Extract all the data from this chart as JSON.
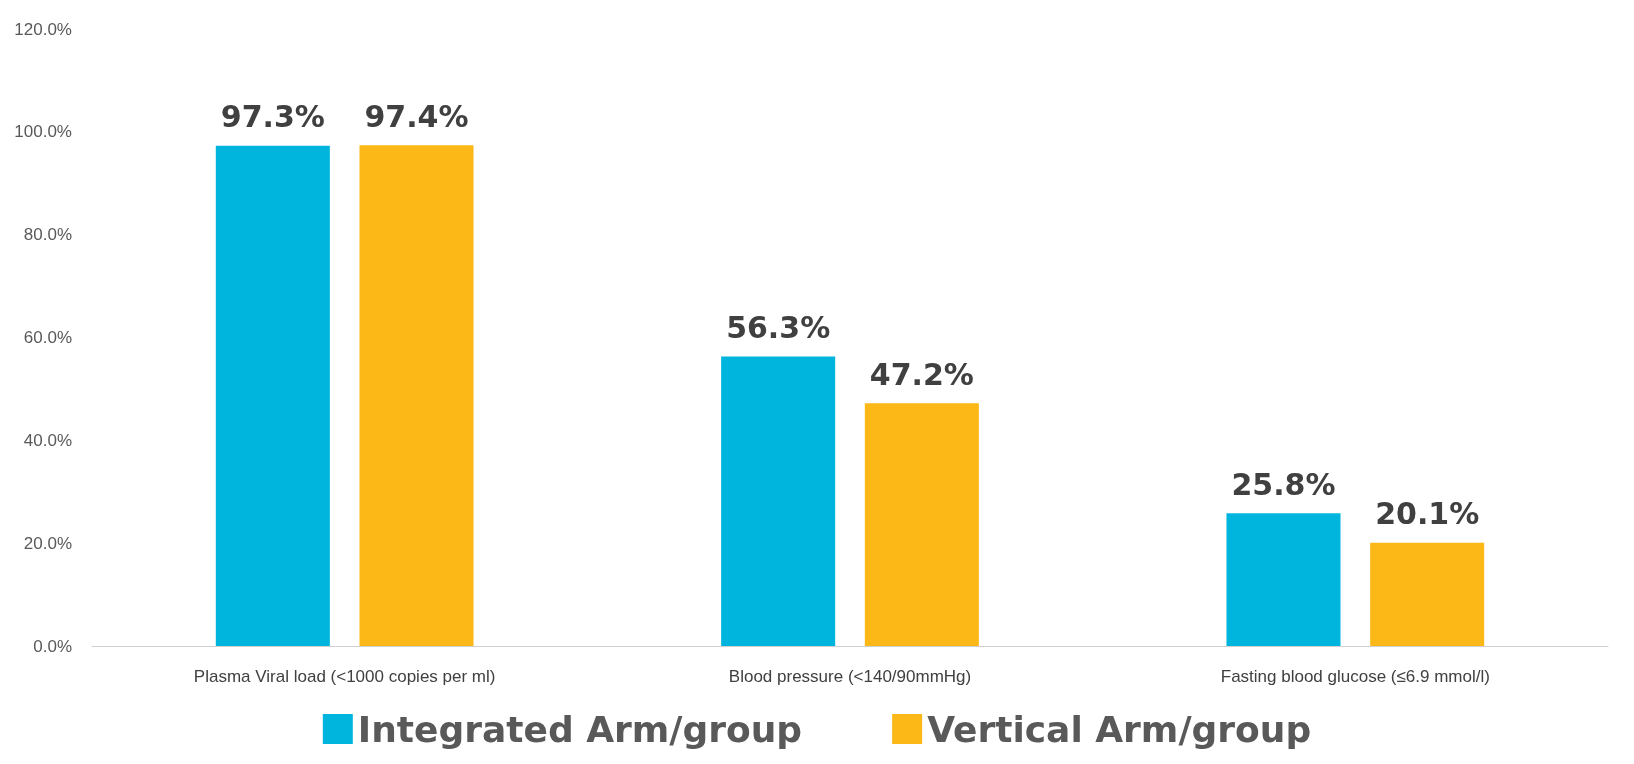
{
  "chart_data": {
    "type": "bar",
    "categories": [
      "Plasma Viral load (<1000 copies per ml)",
      "Blood pressure (<140/90mmHg)",
      "Fasting blood glucose (≤6.9 mmol/l)"
    ],
    "series": [
      {
        "name": "Integrated Arm/group",
        "color": "#00b5dd",
        "values": [
          97.3,
          56.3,
          25.8
        ],
        "value_labels": [
          "97.3%",
          "56.3%",
          "25.8%"
        ]
      },
      {
        "name": "Vertical Arm/group",
        "color": "#fbb817",
        "values": [
          97.4,
          47.2,
          20.1
        ],
        "value_labels": [
          "97.4%",
          "47.2%",
          "20.1%"
        ]
      }
    ],
    "ylim": [
      0,
      120
    ],
    "yticks": [
      {
        "value": 0,
        "label": "0.0%"
      },
      {
        "value": 20,
        "label": "20.0%"
      },
      {
        "value": 40,
        "label": "40.0%"
      },
      {
        "value": 60,
        "label": "60.0%"
      },
      {
        "value": 80,
        "label": "80.0%"
      },
      {
        "value": 100,
        "label": "100.0%"
      },
      {
        "value": 120,
        "label": "120.0%"
      }
    ],
    "legend": "bottom"
  }
}
